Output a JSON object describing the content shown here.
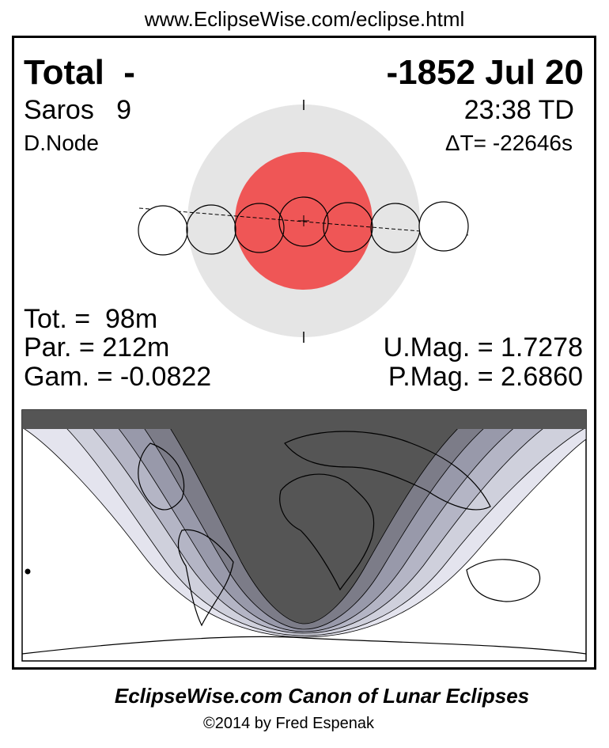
{
  "header": {
    "url": "www.EclipseWise.com/eclipse.html"
  },
  "panel": {
    "eclipse_type": "Total  -",
    "date": "-1852 Jul 20",
    "saros": "Saros   9",
    "time": "23:38 TD",
    "node": "D.Node",
    "delta_t": "ΔT= -22646s",
    "totality": "Tot. =  98m",
    "partial": "Par. = 212m",
    "gamma": "Gam. = -0.0822",
    "umbral_mag": "U.Mag. = 1.7278",
    "penumbral_mag": "P.Mag. = 2.6860"
  },
  "footer": {
    "title": "EclipseWise.com Canon of Lunar Eclipses",
    "credit": "©2014 by Fred Espenak"
  }
}
